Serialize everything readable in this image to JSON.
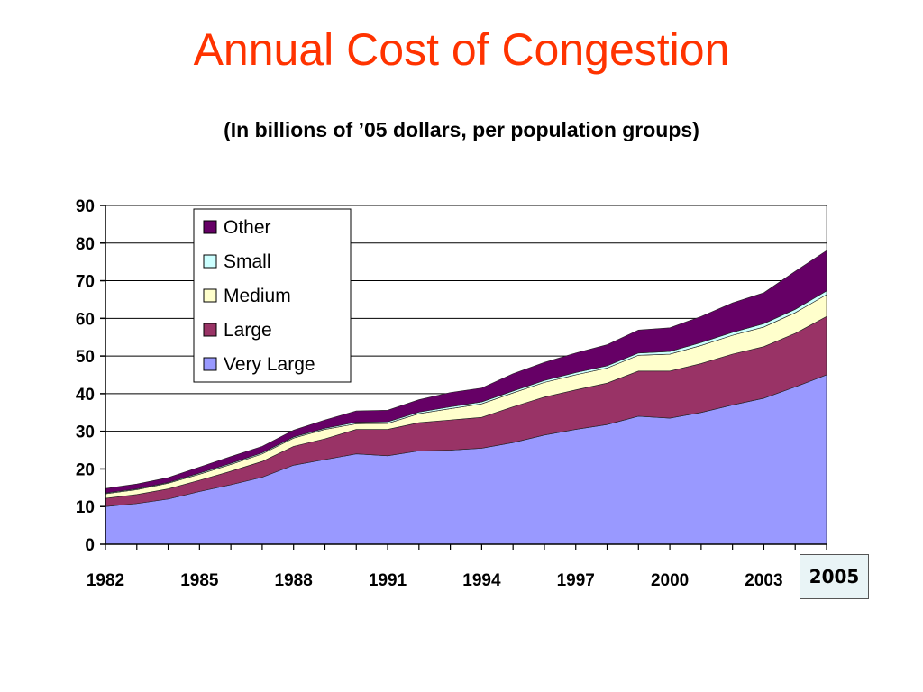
{
  "title": "Annual Cost of Congestion",
  "subtitle": "(In billions of ’05 dollars, per population groups)",
  "chart_data": {
    "type": "area",
    "stacked": true,
    "x": [
      1982,
      1983,
      1984,
      1985,
      1986,
      1987,
      1988,
      1989,
      1990,
      1991,
      1992,
      1993,
      1994,
      1995,
      1996,
      1997,
      1998,
      1999,
      2000,
      2001,
      2002,
      2003,
      2004,
      2005
    ],
    "x_tick_labels": [
      "1982",
      "1985",
      "1988",
      "1991",
      "1994",
      "1997",
      "2000",
      "2003"
    ],
    "x_tick_label_last": "2005",
    "y_ticks": [
      0,
      10,
      20,
      30,
      40,
      50,
      60,
      70,
      80,
      90
    ],
    "ylim": [
      0,
      90
    ],
    "grid": "horizontal",
    "legend_position": "top-left",
    "series": [
      {
        "name": "Very Large",
        "color": "#9999ff",
        "values": [
          10,
          10.8,
          12,
          14,
          15.8,
          17.8,
          21,
          22.5,
          24,
          23.5,
          24.8,
          25,
          25.5,
          27,
          29,
          30.5,
          31.8,
          34,
          33.5,
          35,
          37,
          38.8,
          41.8,
          45
        ]
      },
      {
        "name": "Large",
        "color": "#993366",
        "values": [
          2.2,
          2.4,
          2.7,
          3,
          3.6,
          4.2,
          5,
          5.5,
          6.5,
          7,
          7.5,
          8,
          8.2,
          9.5,
          10.1,
          10.5,
          11,
          12,
          12.5,
          13,
          13.5,
          13.7,
          14.2,
          15.5
        ]
      },
      {
        "name": "Medium",
        "color": "#ffffcc",
        "values": [
          1.2,
          1.3,
          1.5,
          1.6,
          1.8,
          2,
          2.2,
          2.5,
          1.5,
          1.6,
          2.4,
          3,
          3.6,
          3.7,
          3.9,
          4,
          4,
          4.2,
          4.5,
          4.8,
          5,
          5.2,
          5.5,
          5.8
        ]
      },
      {
        "name": "Small",
        "color": "#ccffff",
        "values": [
          0.2,
          0.2,
          0.2,
          0.3,
          0.3,
          0.3,
          0.3,
          0.3,
          0.4,
          0.4,
          0.4,
          0.5,
          0.5,
          0.5,
          0.5,
          0.6,
          0.6,
          0.6,
          0.7,
          0.8,
          0.8,
          0.9,
          0.9,
          1
        ]
      },
      {
        "name": "Other",
        "color": "#660066",
        "values": [
          1.2,
          1.3,
          1.3,
          1.6,
          1.8,
          1.7,
          1.8,
          2.2,
          3,
          3.1,
          3.3,
          3.8,
          3.7,
          4.6,
          4.8,
          5.2,
          5.6,
          6.1,
          6.3,
          6.9,
          7.8,
          8.2,
          10.1,
          10.7
        ]
      }
    ]
  }
}
